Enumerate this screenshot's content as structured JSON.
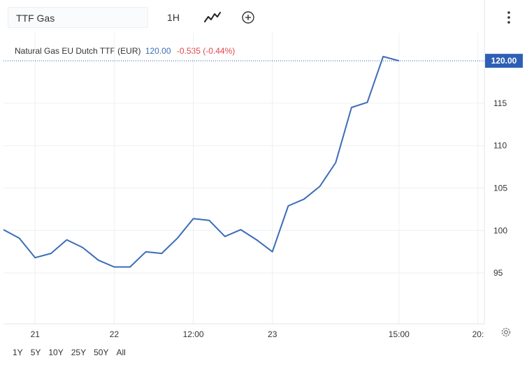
{
  "toolbar": {
    "symbol": "TTF Gas",
    "interval": "1H",
    "chart_style_icon": "line-chart-icon",
    "compare_icon": "add-circle-icon",
    "menu_icon": "more-vertical-icon"
  },
  "legend": {
    "name": "Natural Gas EU Dutch TTF (EUR)",
    "price": "120.00",
    "change": "-0.535 (-0.44%)"
  },
  "ranges": [
    "1Y",
    "5Y",
    "10Y",
    "25Y",
    "50Y",
    "All"
  ],
  "settings_icon": "gear-icon",
  "colors": {
    "line": "#3b6cb7",
    "price_tag": "#2f5fb4",
    "negative": "#e0464b",
    "grid": "#eceff3"
  },
  "chart_data": {
    "type": "line",
    "title": "",
    "xlabel": "",
    "ylabel": "",
    "x_ticks": [
      {
        "label": "21",
        "x": 1.5
      },
      {
        "label": "22",
        "x": 6.5
      },
      {
        "label": "12:00",
        "x": 11.5
      },
      {
        "label": "23",
        "x": 16.5
      },
      {
        "label": "15:00",
        "x": 24.5
      },
      {
        "label": "20:",
        "x": 29.5
      }
    ],
    "xlim": [
      -0.5,
      29.9
    ],
    "ylim": [
      89,
      123.3
    ],
    "y_ticks": [
      95,
      100,
      105,
      110,
      115
    ],
    "grid": true,
    "last_price": 120.0,
    "series": [
      {
        "name": "",
        "x": [
          -0.5,
          0.5,
          1.5,
          2.5,
          3.5,
          4.5,
          5.5,
          6.5,
          7.5,
          8.5,
          9.5,
          10.5,
          11.5,
          12.5,
          13.5,
          14.5,
          15.5,
          16.5,
          17.5,
          18.5,
          19.5,
          20.5,
          21.5,
          22.5,
          23.5,
          24.5
        ],
        "values": [
          100.1,
          99.1,
          96.8,
          97.3,
          98.9,
          98.0,
          96.5,
          95.7,
          95.7,
          97.5,
          97.3,
          99.1,
          101.4,
          101.2,
          99.3,
          100.1,
          98.9,
          97.5,
          102.9,
          103.7,
          105.2,
          108.0,
          114.5,
          115.1,
          120.5,
          120.0
        ]
      }
    ]
  }
}
